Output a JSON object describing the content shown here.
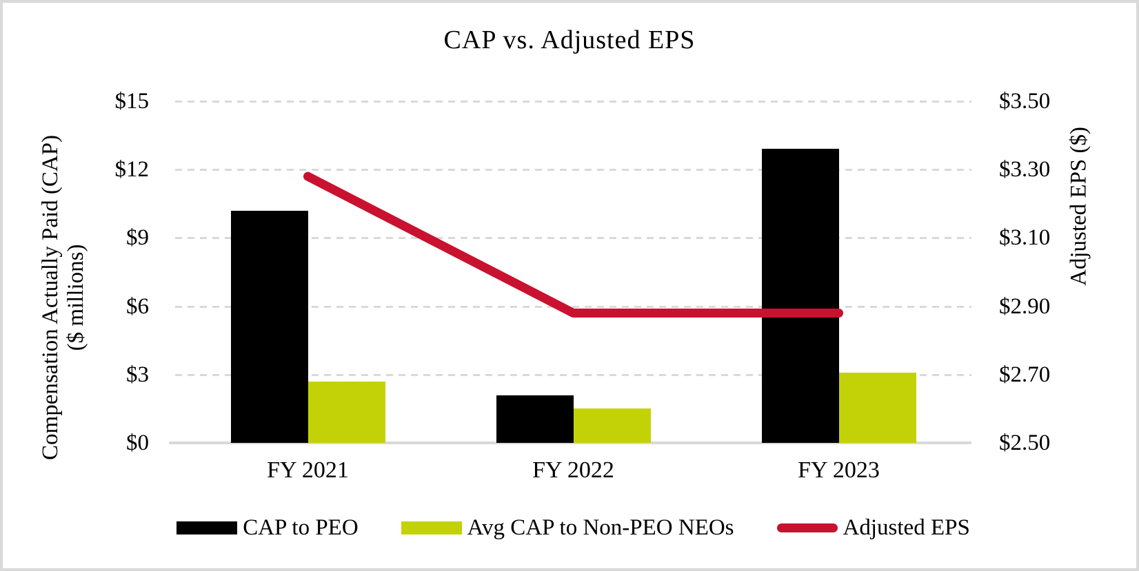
{
  "chart_data": {
    "type": "combo",
    "title": "CAP vs. Adjusted EPS",
    "categories": [
      "FY 2021",
      "FY 2022",
      "FY 2023"
    ],
    "series": [
      {
        "name": "CAP to PEO",
        "chart_type": "bar",
        "axis": "left",
        "color": "#000000",
        "values": [
          10.2,
          2.1,
          12.9
        ]
      },
      {
        "name": "Avg CAP to Non-PEO NEOs",
        "chart_type": "bar",
        "axis": "left",
        "color": "#c3d207",
        "values": [
          2.7,
          1.5,
          3.1
        ]
      },
      {
        "name": "Adjusted EPS",
        "chart_type": "line",
        "axis": "right",
        "color": "#c9122f",
        "values": [
          3.28,
          2.88,
          2.88
        ]
      }
    ],
    "left_axis": {
      "title_line1": "Compensation Actually Paid (CAP)",
      "title_line2": "($ millions)",
      "min": 0,
      "max": 15,
      "step": 3,
      "tick_labels": [
        "$15",
        "$12",
        "$9",
        "$6",
        "$3",
        "$0"
      ]
    },
    "right_axis": {
      "title": "Adjusted EPS ($)",
      "min": 2.5,
      "max": 3.5,
      "step": 0.2,
      "tick_labels": [
        "$3.50",
        "$3.30",
        "$3.10",
        "$2.90",
        "$2.70",
        "$2.50"
      ]
    },
    "grid": {
      "horizontal": "dashed",
      "color": "#d9d9d9",
      "baseline_color": "#d9d9d9"
    },
    "legend_position": "bottom"
  },
  "colors": {
    "background": "#ffffff",
    "frame_border": "#d9d9d9",
    "text": "#000000"
  }
}
